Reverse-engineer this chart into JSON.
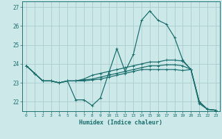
{
  "xlabel": "Humidex (Indice chaleur)",
  "background_color": "#cce8e8",
  "grid_color": "#aacccc",
  "line_color": "#1a6e6e",
  "xlim": [
    -0.5,
    23.5
  ],
  "ylim": [
    21.5,
    27.3
  ],
  "yticks": [
    22,
    23,
    24,
    25,
    26,
    27
  ],
  "xticks": [
    0,
    1,
    2,
    3,
    4,
    5,
    6,
    7,
    8,
    9,
    10,
    11,
    12,
    13,
    14,
    15,
    16,
    17,
    18,
    19,
    20,
    21,
    22,
    23
  ],
  "series": [
    [
      23.9,
      23.5,
      23.1,
      23.1,
      23.0,
      23.1,
      22.1,
      22.1,
      21.8,
      22.2,
      23.5,
      24.8,
      23.6,
      24.5,
      26.3,
      26.8,
      26.3,
      26.1,
      25.4,
      24.2,
      23.7,
      21.9,
      21.6,
      21.55
    ],
    [
      23.9,
      23.5,
      23.1,
      23.1,
      23.0,
      23.1,
      23.1,
      23.2,
      23.4,
      23.5,
      23.6,
      23.7,
      23.8,
      23.9,
      24.0,
      24.1,
      24.1,
      24.2,
      24.2,
      24.15,
      23.7,
      22.0,
      21.6,
      21.55
    ],
    [
      23.9,
      23.5,
      23.1,
      23.1,
      23.0,
      23.1,
      23.1,
      23.15,
      23.2,
      23.3,
      23.4,
      23.5,
      23.6,
      23.7,
      23.8,
      23.9,
      23.9,
      23.95,
      23.95,
      23.9,
      23.7,
      22.0,
      21.6,
      21.55
    ],
    [
      23.9,
      23.5,
      23.1,
      23.1,
      23.0,
      23.1,
      23.1,
      23.1,
      23.15,
      23.2,
      23.3,
      23.4,
      23.5,
      23.6,
      23.7,
      23.7,
      23.7,
      23.7,
      23.7,
      23.65,
      23.7,
      22.0,
      21.6,
      21.55
    ]
  ]
}
